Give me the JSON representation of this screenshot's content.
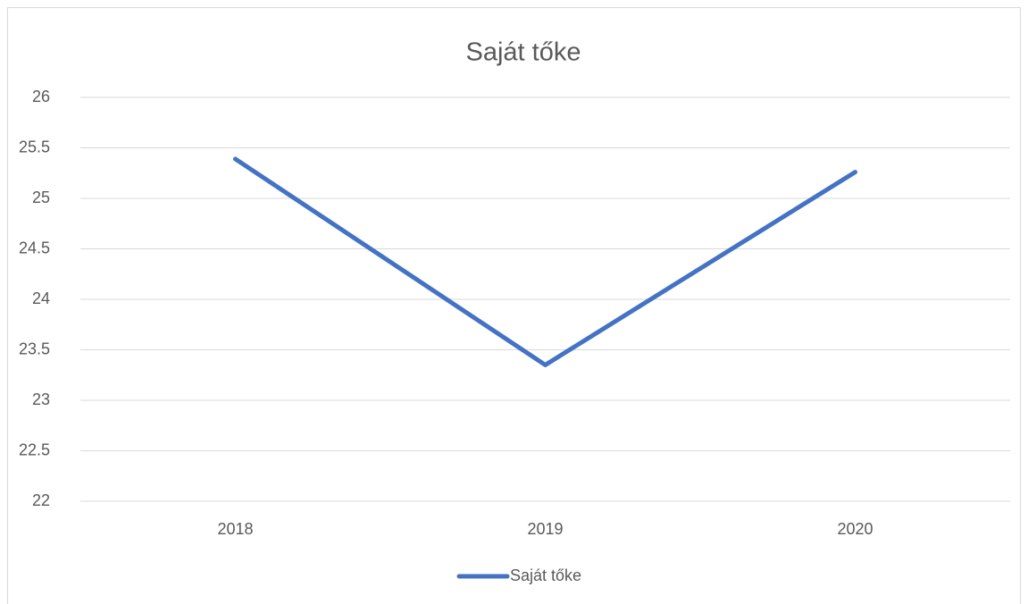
{
  "chart_data": {
    "type": "line",
    "title": "Saját tőke",
    "categories": [
      "2018",
      "2019",
      "2020"
    ],
    "series": [
      {
        "name": "Saját tőke",
        "color": "#4472c4",
        "values": [
          25.39,
          23.35,
          25.26
        ]
      }
    ],
    "ylim": [
      22,
      26
    ],
    "yticks": [
      22,
      22.5,
      23,
      23.5,
      24,
      24.5,
      25,
      25.5,
      26
    ],
    "grid": true,
    "legend": "bottom"
  }
}
